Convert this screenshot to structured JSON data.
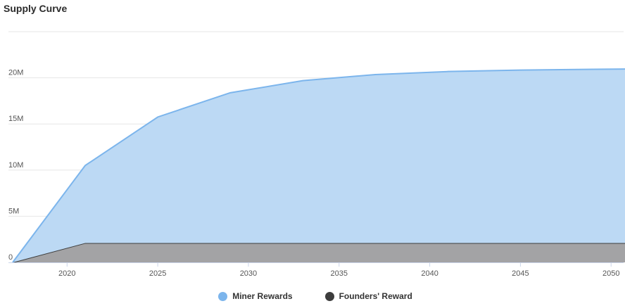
{
  "chart_data": {
    "type": "area",
    "title": "Supply Curve",
    "xlabel": "",
    "ylabel": "",
    "xlim": [
      2017,
      2051
    ],
    "ylim": [
      0,
      25000000
    ],
    "x_ticks": [
      2020,
      2025,
      2030,
      2035,
      2040,
      2045,
      2050
    ],
    "y_ticks": [
      {
        "value": 0,
        "label": "0"
      },
      {
        "value": 5000000,
        "label": "5M"
      },
      {
        "value": 10000000,
        "label": "10M"
      },
      {
        "value": 15000000,
        "label": "15M"
      },
      {
        "value": 20000000,
        "label": "20M"
      }
    ],
    "grid": true,
    "legend_position": "bottom",
    "stacked": true,
    "x": [
      2017,
      2021,
      2025,
      2029,
      2033,
      2037,
      2041,
      2045,
      2049,
      2051
    ],
    "series": [
      {
        "name": "Founders' Reward",
        "color": "#3d3d3d",
        "fill": "#a3a3a5",
        "values": [
          0,
          2100000,
          2100000,
          2100000,
          2100000,
          2100000,
          2100000,
          2100000,
          2100000,
          2100000
        ]
      },
      {
        "name": "Miner Rewards",
        "color": "#7cb5ec",
        "fill": "#bcd9f4",
        "values": [
          0,
          8400000,
          13650000,
          16280000,
          17590000,
          18250000,
          18580000,
          18740000,
          18820000,
          18850000
        ]
      }
    ]
  }
}
